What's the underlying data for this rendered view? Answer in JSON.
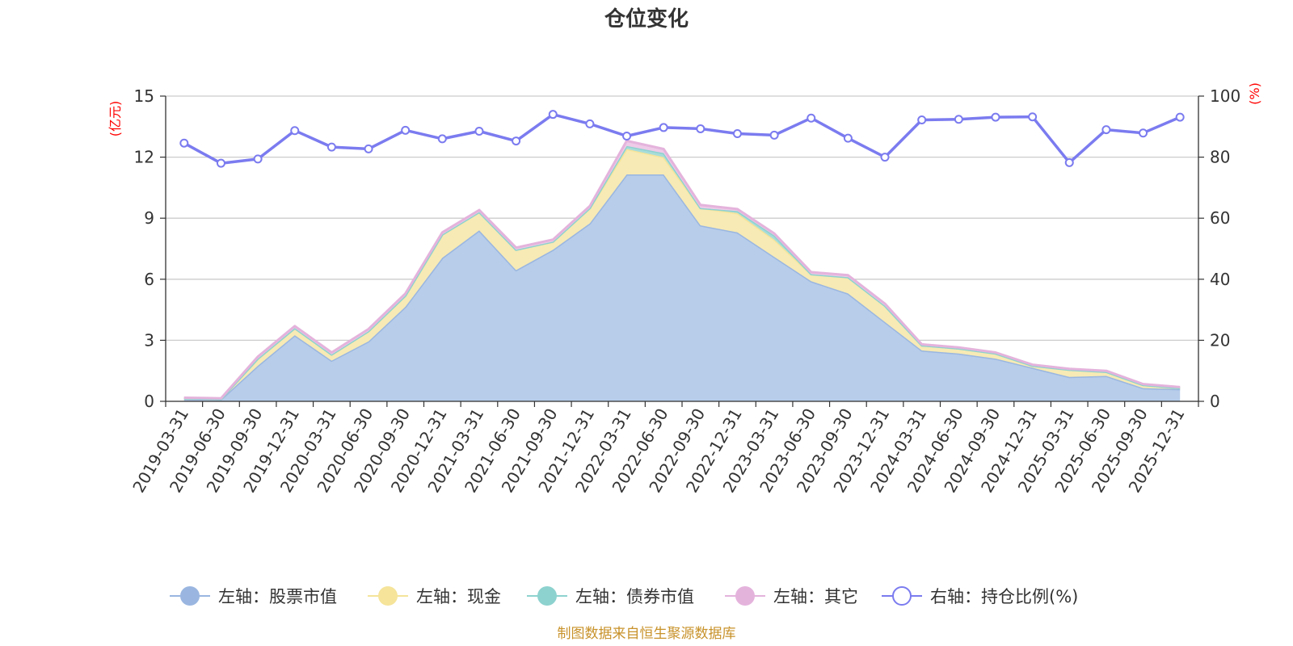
{
  "chart_data": {
    "type": "area",
    "title": "仓位变化",
    "left_axis": {
      "unit": "(亿元)",
      "min": 0,
      "max": 15,
      "ticks": [
        "0",
        "3",
        "6",
        "9",
        "12",
        "15"
      ]
    },
    "right_axis": {
      "unit": "(%)",
      "min": 0,
      "max": 100,
      "ticks": [
        "0",
        "20",
        "40",
        "60",
        "80",
        "100"
      ]
    },
    "categories": [
      "2019-03-31",
      "2019-06-30",
      "2019-09-30",
      "2019-12-31",
      "2020-03-31",
      "2020-06-30",
      "2020-09-30",
      "2020-12-31",
      "2021-03-31",
      "2021-06-30",
      "2021-09-30",
      "2021-12-31",
      "2022-03-31",
      "2022-06-30",
      "2022-09-30",
      "2022-12-31",
      "2023-03-31",
      "2023-06-30",
      "2023-09-30",
      "2023-12-31",
      "2024-03-31",
      "2024-06-30",
      "2024-09-30",
      "2024-12-31",
      "2025-03-31",
      "2025-06-30",
      "2025-09-30",
      "2025-12-31"
    ],
    "series": [
      {
        "name": "左轴：股票市值",
        "axis": "left",
        "kind": "stacked-area",
        "color": "#9ab6e0",
        "fill": "#b7cdea",
        "values": [
          0.12,
          0.1,
          1.75,
          3.25,
          2.0,
          2.95,
          4.65,
          7.05,
          8.4,
          6.45,
          7.45,
          8.75,
          11.15,
          11.15,
          8.65,
          8.3,
          7.1,
          5.9,
          5.3,
          3.9,
          2.5,
          2.35,
          2.1,
          1.65,
          1.2,
          1.25,
          0.65,
          0.6
        ]
      },
      {
        "name": "左轴：现金",
        "axis": "left",
        "kind": "stacked-area",
        "color": "#f5e49a",
        "fill": "#f7eab4",
        "values": [
          0.03,
          0.02,
          0.35,
          0.35,
          0.3,
          0.5,
          0.55,
          1.15,
          0.9,
          1.0,
          0.4,
          0.75,
          1.25,
          0.85,
          0.85,
          0.95,
          0.85,
          0.35,
          0.8,
          0.8,
          0.25,
          0.25,
          0.25,
          0.1,
          0.35,
          0.2,
          0.15,
          0.05
        ]
      },
      {
        "name": "左轴：债券市值",
        "axis": "left",
        "kind": "stacked-area",
        "color": "#8dd2cf",
        "fill": "#a7dcd9",
        "values": [
          0,
          0,
          0,
          0,
          0,
          0,
          0,
          0,
          0,
          0,
          0,
          0,
          0.15,
          0.2,
          0,
          0.1,
          0.2,
          0,
          0,
          0,
          0,
          0,
          0,
          0,
          0,
          0,
          0,
          0
        ]
      },
      {
        "name": "左轴：其它",
        "axis": "left",
        "kind": "stacked-area",
        "color": "#e4b3dc",
        "fill": "#eecbe8",
        "values": [
          0.03,
          0.03,
          0.1,
          0.1,
          0.1,
          0.1,
          0.1,
          0.1,
          0.1,
          0.1,
          0.1,
          0.1,
          0.25,
          0.2,
          0.15,
          0.1,
          0.1,
          0.1,
          0.1,
          0.1,
          0.05,
          0.05,
          0.05,
          0.05,
          0.05,
          0.05,
          0.05,
          0.05
        ]
      },
      {
        "name": "右轴：持仓比例(%)",
        "axis": "right",
        "kind": "line",
        "color": "#7b7bf0",
        "values": [
          84.6,
          78.0,
          79.4,
          88.7,
          83.3,
          82.7,
          88.8,
          86.0,
          88.5,
          85.3,
          94.0,
          90.9,
          86.9,
          89.7,
          89.3,
          87.7,
          87.2,
          92.8,
          86.2,
          80.0,
          92.2,
          92.4,
          93.1,
          93.2,
          78.2,
          89.0,
          87.9,
          93.1
        ]
      }
    ],
    "legend_position": "bottom",
    "grid": true
  },
  "footer": {
    "source": "制图数据来自恒生聚源数据库"
  }
}
